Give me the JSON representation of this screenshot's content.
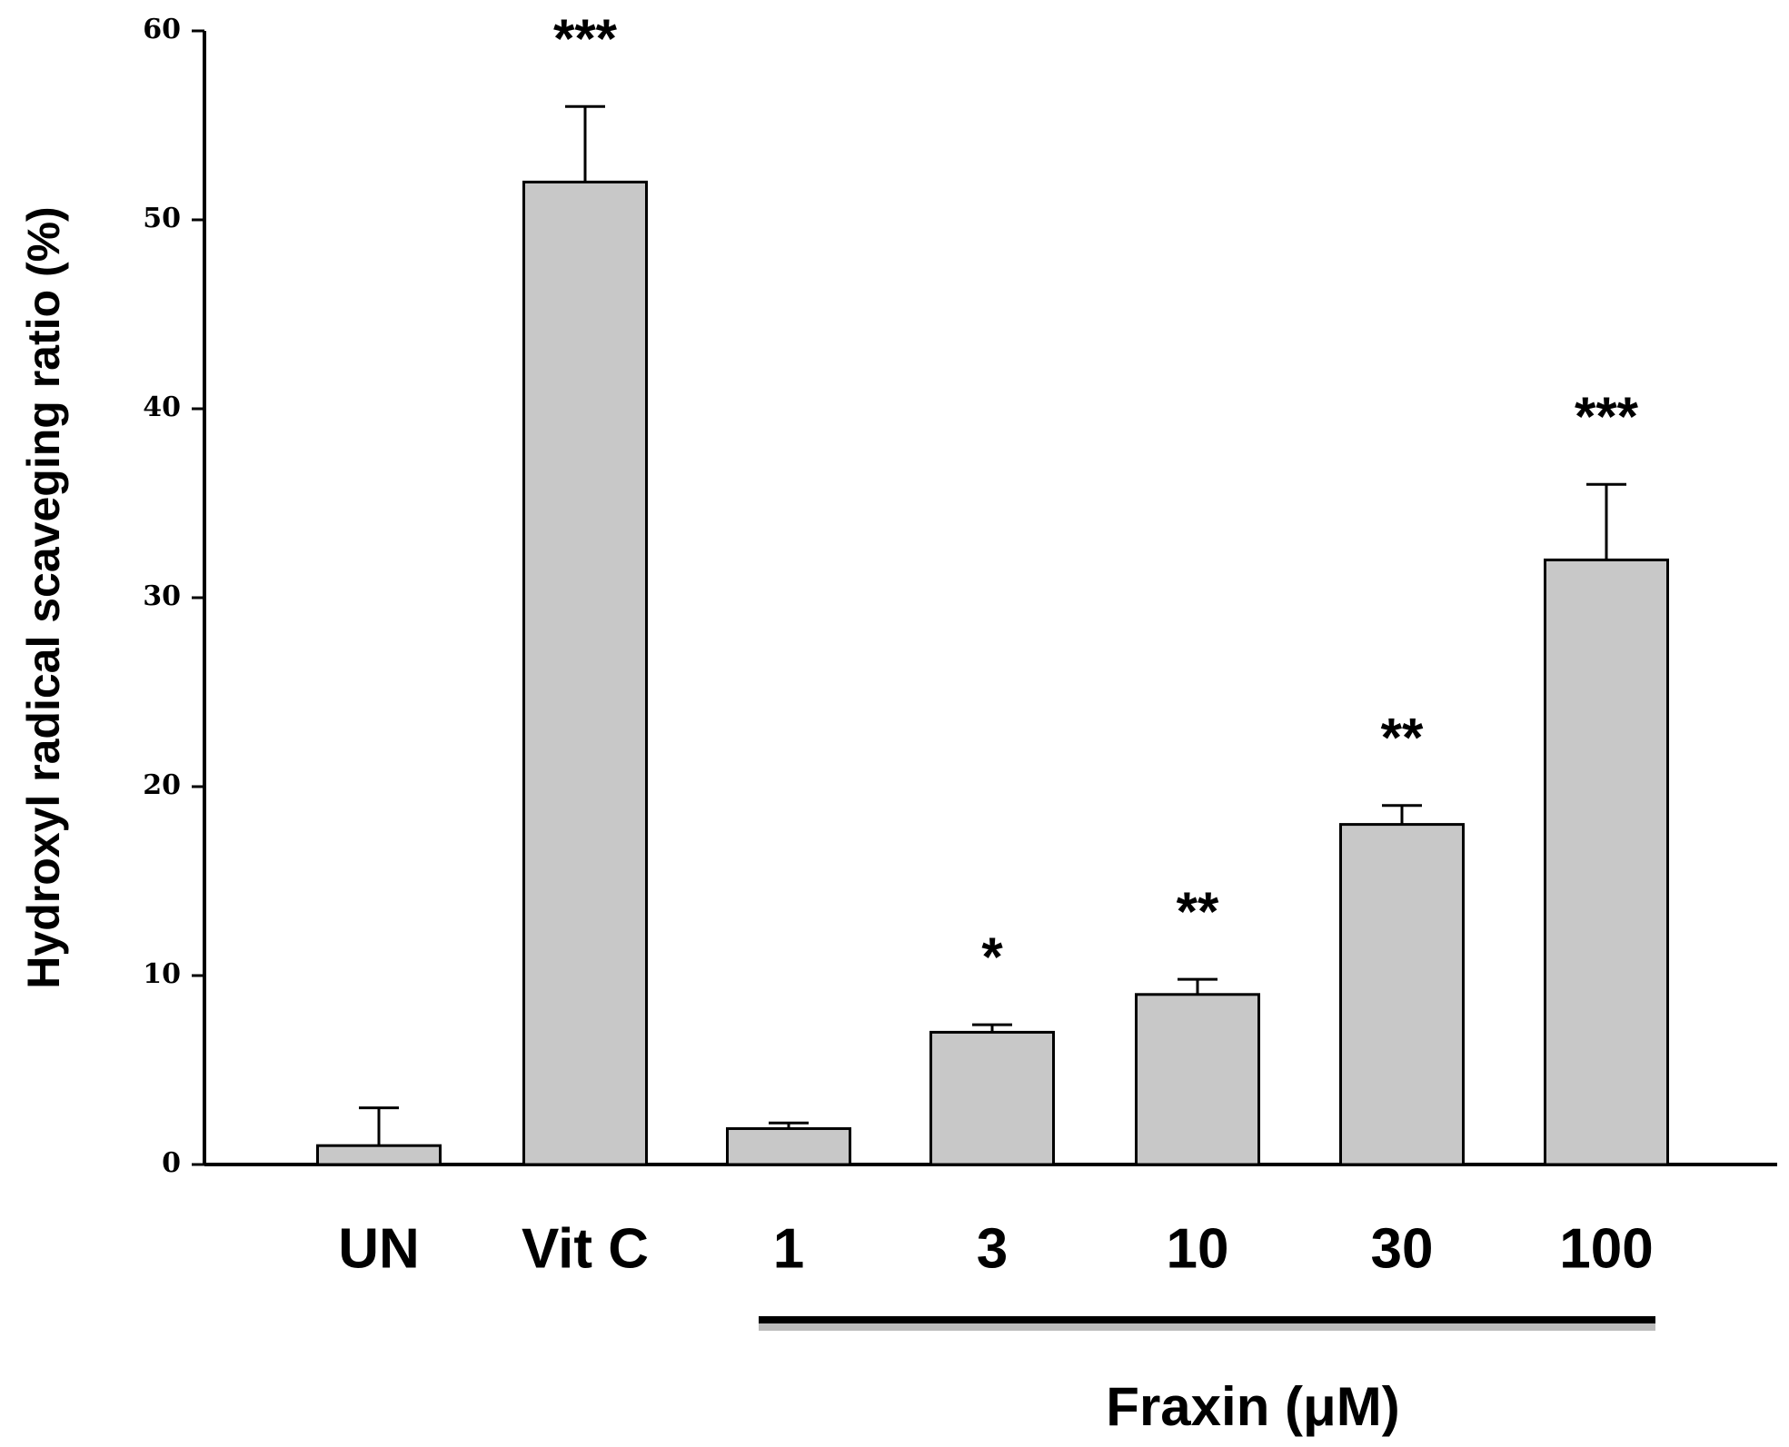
{
  "chart_data": {
    "type": "bar",
    "y_label": "Hydroxyl radical scaveging ratio (%)",
    "categories": [
      "UN",
      "Vit C",
      "1",
      "3",
      "10",
      "30",
      "100"
    ],
    "values": [
      1,
      52,
      1.9,
      7,
      9,
      18,
      32
    ],
    "errors": [
      2,
      4,
      0.3,
      0.4,
      0.8,
      1,
      4
    ],
    "annotations": [
      null,
      "***",
      null,
      "*",
      "**",
      "**",
      "***"
    ],
    "group_label": "Fraxin  (μM)",
    "color": "#c8c8c8",
    "ylim": [
      0,
      60
    ],
    "yticks": [
      0,
      10,
      20,
      30,
      40,
      50,
      60
    ]
  }
}
